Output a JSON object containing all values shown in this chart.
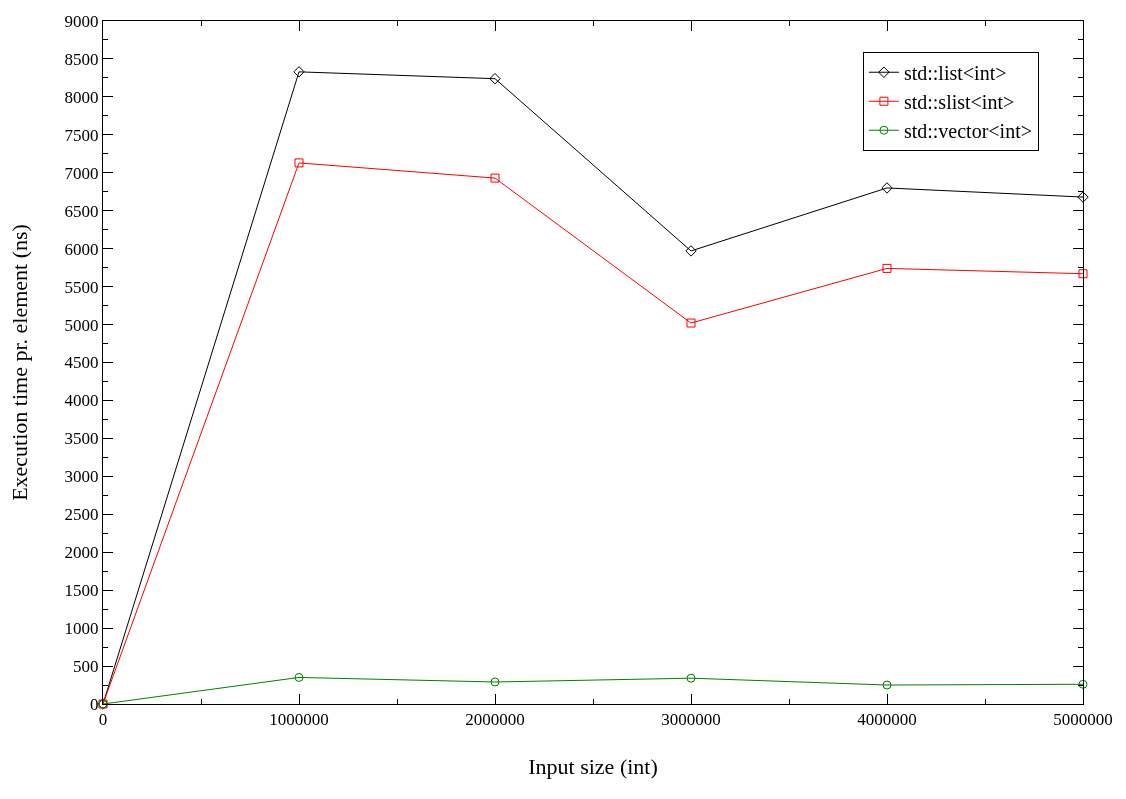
{
  "chart_data": {
    "type": "line",
    "xlabel": "Input size (int)",
    "ylabel": "Execution time pr. element (ns)",
    "x": [
      0,
      1000000,
      2000000,
      3000000,
      4000000,
      5000000
    ],
    "series": [
      {
        "name": "std::list<int>",
        "color": "#000000",
        "marker": "diamond",
        "values": [
          0,
          8330,
          8240,
          5970,
          6800,
          6680
        ]
      },
      {
        "name": "std::slist<int>",
        "color": "#ff0000",
        "marker": "square",
        "values": [
          0,
          7130,
          6930,
          5020,
          5740,
          5670
        ]
      },
      {
        "name": "std::vector<int>",
        "color": "#008000",
        "marker": "circle",
        "values": [
          0,
          350,
          290,
          340,
          250,
          260
        ]
      }
    ],
    "xlim": [
      0,
      5000000
    ],
    "xticks": [
      0,
      1000000,
      2000000,
      3000000,
      4000000,
      5000000
    ],
    "ylim": [
      0,
      9000
    ],
    "yticks": [
      0,
      500,
      1000,
      1500,
      2000,
      2500,
      3000,
      3500,
      4000,
      4500,
      5000,
      5500,
      6000,
      6500,
      7000,
      7500,
      8000,
      8500,
      9000
    ],
    "grid": false,
    "legend": "top right",
    "line_style": "solid"
  }
}
